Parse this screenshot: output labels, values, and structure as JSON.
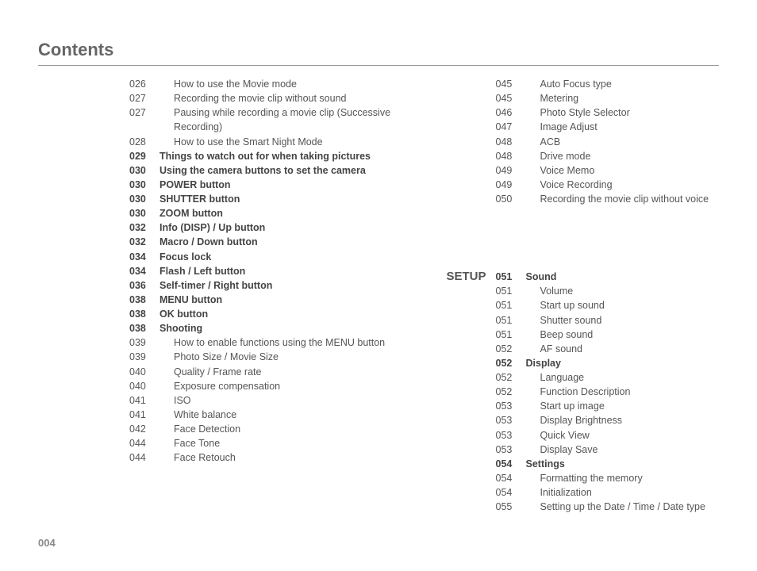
{
  "title": "Contents",
  "page_number": "004",
  "colors": {
    "text": "#555555",
    "bold_text": "#444444",
    "rule": "#999999",
    "page_num": "#888888",
    "background": "#ffffff"
  },
  "left_column": [
    {
      "page": "026",
      "label": "How to use the Movie mode",
      "bold": false,
      "indent": true
    },
    {
      "page": "027",
      "label": "Recording the movie clip without sound",
      "bold": false,
      "indent": true
    },
    {
      "page": "027",
      "label": "Pausing while recording a movie clip (Successive Recording)",
      "bold": false,
      "indent": true
    },
    {
      "page": "028",
      "label": "How to use the Smart Night Mode",
      "bold": false,
      "indent": true
    },
    {
      "page": "029",
      "label": "Things to watch out for when taking pictures",
      "bold": true,
      "indent": false
    },
    {
      "page": "030",
      "label": "Using the camera buttons to set the camera",
      "bold": true,
      "indent": false
    },
    {
      "page": "030",
      "label": "POWER button",
      "bold": true,
      "indent": false
    },
    {
      "page": "030",
      "label": "SHUTTER button",
      "bold": true,
      "indent": false
    },
    {
      "page": "030",
      "label": "ZOOM button",
      "bold": true,
      "indent": false
    },
    {
      "page": "032",
      "label": "Info (DISP) / Up button",
      "bold": true,
      "indent": false
    },
    {
      "page": "032",
      "label": "Macro / Down button",
      "bold": true,
      "indent": false
    },
    {
      "page": "034",
      "label": "Focus lock",
      "bold": true,
      "indent": false
    },
    {
      "page": "034",
      "label": "Flash / Left button",
      "bold": true,
      "indent": false
    },
    {
      "page": "036",
      "label": "Self-timer / Right button",
      "bold": true,
      "indent": false
    },
    {
      "page": "038",
      "label": "MENU button",
      "bold": true,
      "indent": false
    },
    {
      "page": "038",
      "label": "OK button",
      "bold": true,
      "indent": false
    },
    {
      "page": "038",
      "label": "Shooting",
      "bold": true,
      "indent": false
    },
    {
      "page": "039",
      "label": "How to enable functions using the MENU button",
      "bold": false,
      "indent": true
    },
    {
      "page": "039",
      "label": "Photo Size / Movie Size",
      "bold": false,
      "indent": true
    },
    {
      "page": "040",
      "label": "Quality / Frame rate",
      "bold": false,
      "indent": true
    },
    {
      "page": "040",
      "label": "Exposure compensation",
      "bold": false,
      "indent": true
    },
    {
      "page": "041",
      "label": "ISO",
      "bold": false,
      "indent": true
    },
    {
      "page": "041",
      "label": "White balance",
      "bold": false,
      "indent": true
    },
    {
      "page": "042",
      "label": "Face Detection",
      "bold": false,
      "indent": true
    },
    {
      "page": "044",
      "label": "Face Tone",
      "bold": false,
      "indent": true
    },
    {
      "page": "044",
      "label": "Face Retouch",
      "bold": false,
      "indent": true
    }
  ],
  "right_column_top": [
    {
      "page": "045",
      "label": "Auto Focus type",
      "bold": false,
      "indent": true
    },
    {
      "page": "045",
      "label": "Metering",
      "bold": false,
      "indent": true
    },
    {
      "page": "046",
      "label": "Photo Style Selector",
      "bold": false,
      "indent": true
    },
    {
      "page": "047",
      "label": "Image Adjust",
      "bold": false,
      "indent": true
    },
    {
      "page": "048",
      "label": "ACB",
      "bold": false,
      "indent": true
    },
    {
      "page": "048",
      "label": "Drive mode",
      "bold": false,
      "indent": true
    },
    {
      "page": "049",
      "label": "Voice Memo",
      "bold": false,
      "indent": true
    },
    {
      "page": "049",
      "label": "Voice Recording",
      "bold": false,
      "indent": true
    },
    {
      "page": "050",
      "label": "Recording the movie clip without voice",
      "bold": false,
      "indent": true
    }
  ],
  "setup_label": "SETUP",
  "right_column_setup": [
    {
      "page": "051",
      "label": "Sound",
      "bold": true,
      "indent": false
    },
    {
      "page": "051",
      "label": "Volume",
      "bold": false,
      "indent": true
    },
    {
      "page": "051",
      "label": "Start up sound",
      "bold": false,
      "indent": true
    },
    {
      "page": "051",
      "label": "Shutter sound",
      "bold": false,
      "indent": true
    },
    {
      "page": "051",
      "label": "Beep sound",
      "bold": false,
      "indent": true
    },
    {
      "page": "052",
      "label": "AF sound",
      "bold": false,
      "indent": true
    },
    {
      "page": "052",
      "label": "Display",
      "bold": true,
      "indent": false
    },
    {
      "page": "052",
      "label": "Language",
      "bold": false,
      "indent": true
    },
    {
      "page": "052",
      "label": "Function Description",
      "bold": false,
      "indent": true
    },
    {
      "page": "053",
      "label": "Start up image",
      "bold": false,
      "indent": true
    },
    {
      "page": "053",
      "label": "Display Brightness",
      "bold": false,
      "indent": true
    },
    {
      "page": "053",
      "label": "Quick View",
      "bold": false,
      "indent": true
    },
    {
      "page": "053",
      "label": "Display Save",
      "bold": false,
      "indent": true
    },
    {
      "page": "054",
      "label": "Settings",
      "bold": true,
      "indent": false
    },
    {
      "page": "054",
      "label": "Formatting the memory",
      "bold": false,
      "indent": true
    },
    {
      "page": "054",
      "label": "Initialization",
      "bold": false,
      "indent": true
    },
    {
      "page": "055",
      "label": "Setting up the Date / Time / Date type",
      "bold": false,
      "indent": true
    }
  ]
}
